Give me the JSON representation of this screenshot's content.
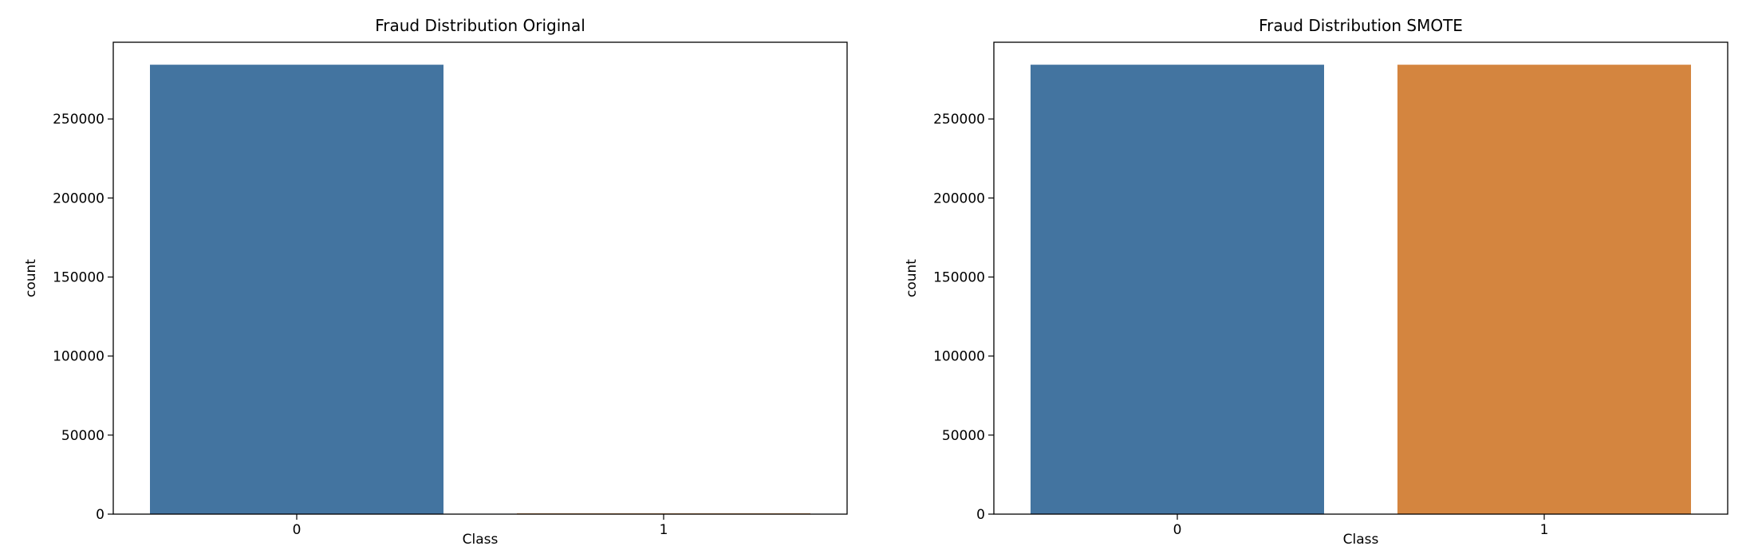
{
  "chart_data": [
    {
      "type": "bar",
      "title": "Fraud Distribution Original",
      "xlabel": "Class",
      "ylabel": "count",
      "categories": [
        "0",
        "1"
      ],
      "values": [
        284315,
        492
      ],
      "colors": [
        "#4374a0",
        "#d4853f"
      ],
      "yticks": [
        0,
        50000,
        100000,
        150000,
        200000,
        250000
      ],
      "ylim": [
        0,
        298531
      ],
      "grid": false
    },
    {
      "type": "bar",
      "title": "Fraud Distribution SMOTE",
      "xlabel": "Class",
      "ylabel": "count",
      "categories": [
        "0",
        "1"
      ],
      "values": [
        284315,
        284315
      ],
      "colors": [
        "#4374a0",
        "#d4853f"
      ],
      "yticks": [
        0,
        50000,
        100000,
        150000,
        200000,
        250000
      ],
      "ylim": [
        0,
        298531
      ],
      "grid": false
    }
  ]
}
